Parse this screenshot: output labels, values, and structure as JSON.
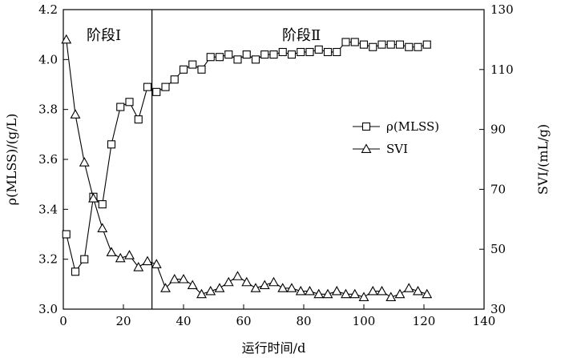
{
  "chart_data": {
    "type": "line",
    "xlabel": "运行时间/d",
    "ylabel_left": "ρ(MLSS)/(g/L)",
    "ylabel_right": "SVI/(mL/g)",
    "xlim": [
      0,
      140
    ],
    "ylim_left": [
      3.0,
      4.2
    ],
    "ylim_right": [
      30,
      130
    ],
    "x_ticks": [
      0,
      20,
      40,
      60,
      80,
      100,
      120,
      140
    ],
    "y_left_ticks": [
      3.0,
      3.2,
      3.4,
      3.6,
      3.8,
      4.0,
      4.2
    ],
    "y_right_ticks": [
      30,
      50,
      70,
      90,
      110,
      130
    ],
    "stage_divider_x": 29.5,
    "stage_labels": [
      "阶段Ⅰ",
      "阶段Ⅱ"
    ],
    "legend_position": "right-center",
    "grid": false,
    "series": [
      {
        "name": "ρ(MLSS)",
        "axis": "left",
        "marker": "square",
        "x": [
          1,
          4,
          7,
          10,
          13,
          16,
          19,
          22,
          25,
          28,
          31,
          34,
          37,
          40,
          43,
          46,
          49,
          52,
          55,
          58,
          61,
          64,
          67,
          70,
          73,
          76,
          79,
          82,
          85,
          88,
          91,
          94,
          97,
          100,
          103,
          106,
          109,
          112,
          115,
          118,
          121
        ],
        "values": [
          3.3,
          3.15,
          3.2,
          3.45,
          3.42,
          3.66,
          3.81,
          3.83,
          3.76,
          3.89,
          3.87,
          3.89,
          3.92,
          3.96,
          3.98,
          3.96,
          4.01,
          4.01,
          4.02,
          4.0,
          4.02,
          4.0,
          4.02,
          4.02,
          4.03,
          4.02,
          4.03,
          4.03,
          4.04,
          4.03,
          4.03,
          4.07,
          4.07,
          4.06,
          4.05,
          4.06,
          4.06,
          4.06,
          4.05,
          4.05,
          4.06
        ]
      },
      {
        "name": "SVI",
        "axis": "right",
        "marker": "triangle",
        "x": [
          1,
          4,
          7,
          10,
          13,
          16,
          19,
          22,
          25,
          28,
          31,
          34,
          37,
          40,
          43,
          46,
          49,
          52,
          55,
          58,
          61,
          64,
          67,
          70,
          73,
          76,
          79,
          82,
          85,
          88,
          91,
          94,
          97,
          100,
          103,
          106,
          109,
          112,
          115,
          118,
          121
        ],
        "values": [
          120,
          95,
          79,
          67,
          57,
          49,
          47,
          48,
          44,
          46,
          45,
          37,
          40,
          40,
          38,
          35,
          36,
          37,
          39,
          41,
          39,
          37,
          38,
          39,
          37,
          37,
          36,
          36,
          35,
          35,
          36,
          35,
          35,
          34,
          36,
          36,
          34,
          35,
          37,
          36,
          35
        ]
      }
    ]
  }
}
